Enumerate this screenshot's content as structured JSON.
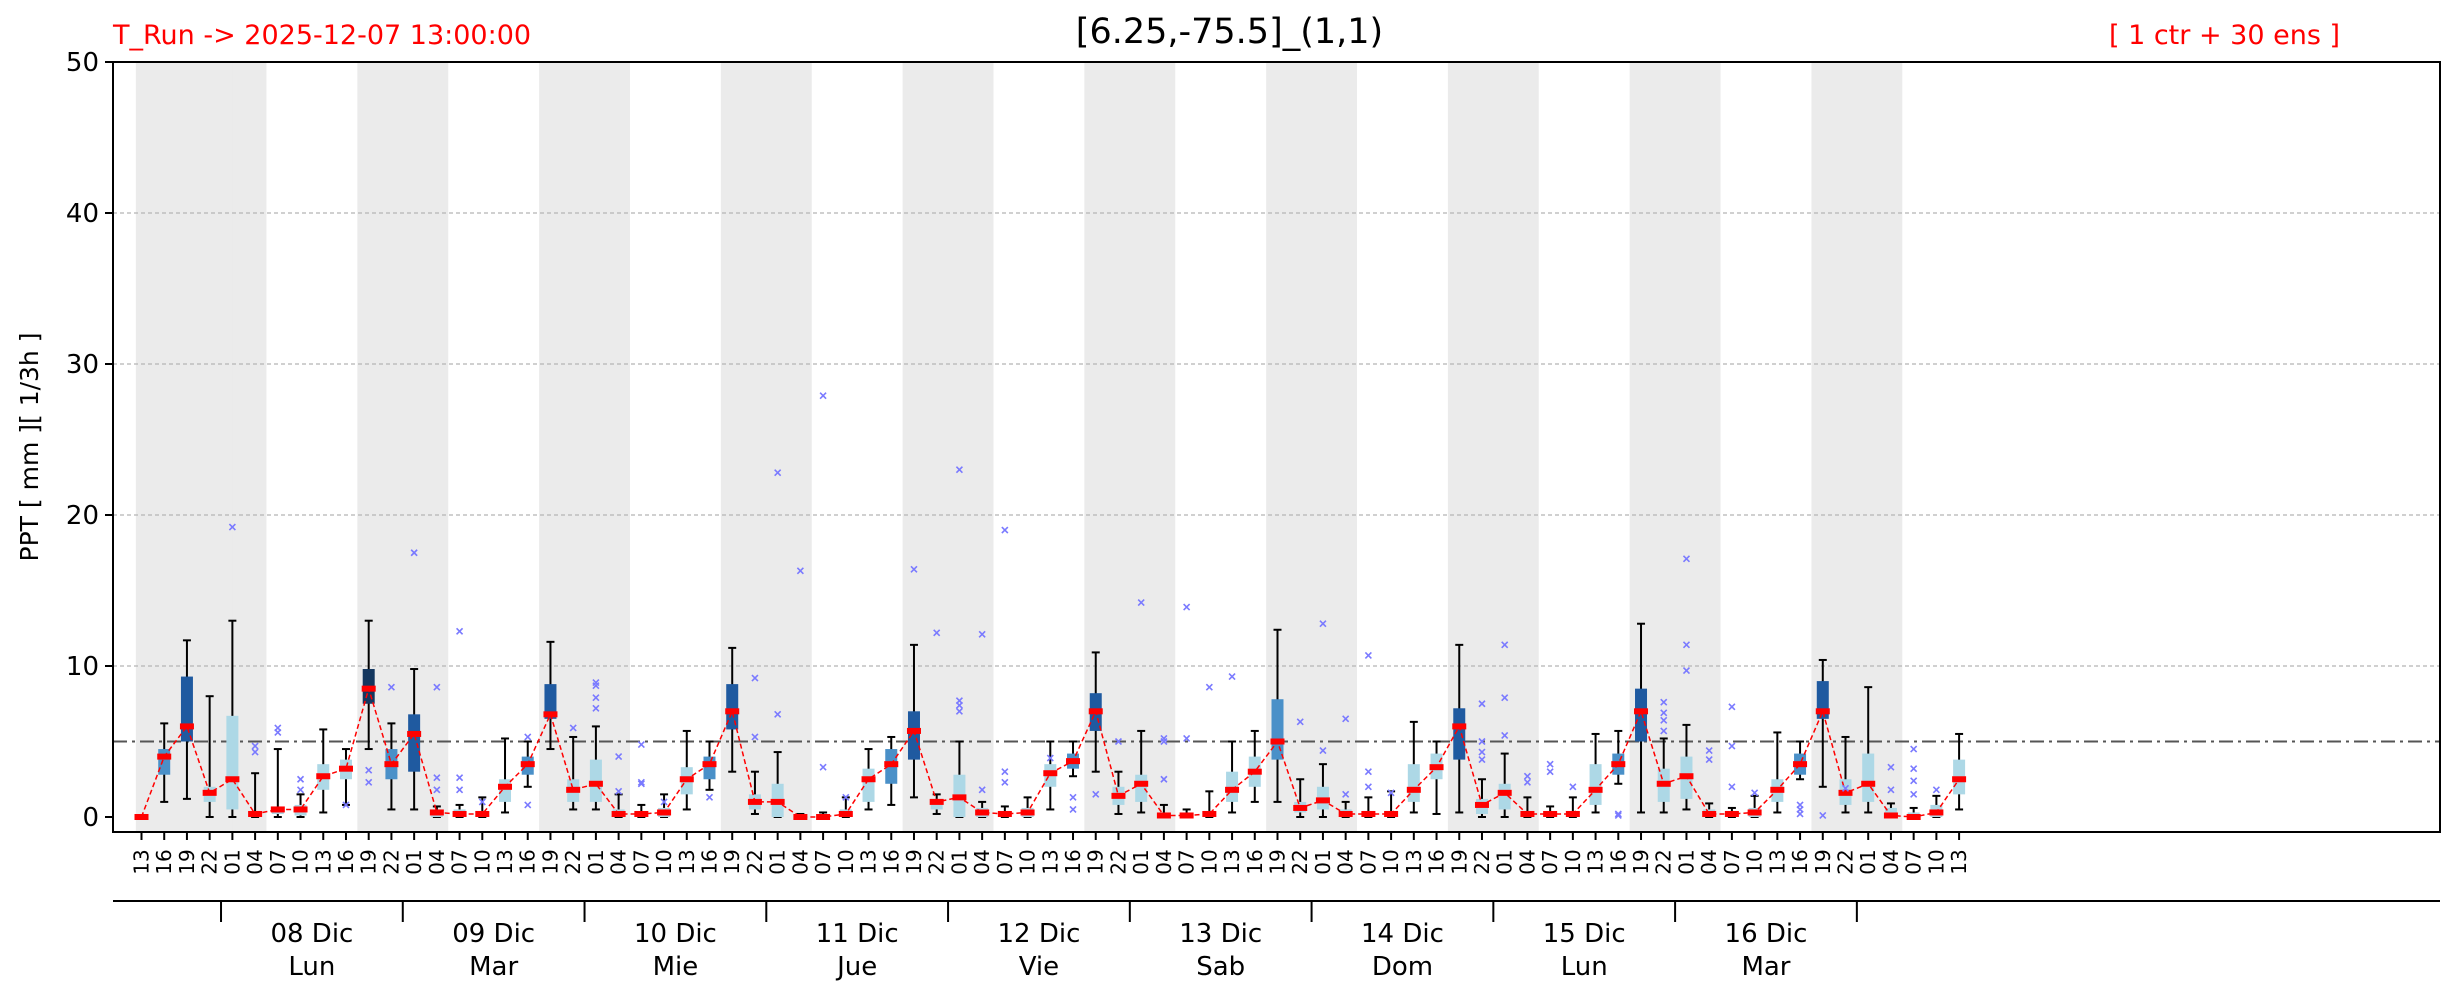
{
  "header": {
    "run_label": "T_Run -> 2025-12-07  13:00:00",
    "title": "[6.25,-75.5]_(1,1)",
    "ensemble_label": "[ 1 ctr + 30 ens ]"
  },
  "colors": {
    "accent": "#ff0000",
    "shade": "#ebebeb",
    "box_light": "#add8e6",
    "box_mid": "#4a90c8",
    "box_dark": "#1f5aa0",
    "box_darkest": "#14375f",
    "outlier": "#7a7aff",
    "threshold_line": "#555555"
  },
  "chart_data": {
    "type": "box",
    "title": "[6.25,-75.5]_(1,1)",
    "ylabel": "PPT  [ mm ][ 1/3h ]",
    "ylim": [
      0,
      50
    ],
    "yticks": [
      0,
      10,
      20,
      30,
      40,
      50
    ],
    "grid": true,
    "threshold": 5,
    "hours": [
      "13",
      "16",
      "19",
      "22",
      "01",
      "04",
      "07",
      "10",
      "13",
      "16",
      "19",
      "22",
      "01",
      "04",
      "07",
      "10",
      "13",
      "16",
      "19",
      "22",
      "01",
      "04",
      "07",
      "10",
      "13",
      "16",
      "19",
      "22",
      "01",
      "04",
      "07",
      "10",
      "13",
      "16",
      "19",
      "22",
      "01",
      "04",
      "07",
      "10",
      "13",
      "16",
      "19",
      "22",
      "01",
      "04",
      "07",
      "10",
      "13",
      "16",
      "19",
      "22",
      "01",
      "04",
      "07",
      "10",
      "13",
      "16",
      "19",
      "22",
      "01",
      "04",
      "07",
      "10",
      "13",
      "16",
      "19",
      "22",
      "01",
      "04",
      "07",
      "10",
      "13",
      "16",
      "19",
      "22",
      "01",
      "04",
      "07",
      "10",
      "13"
    ],
    "days": [
      {
        "date": "08 Dic",
        "weekday": "Lun"
      },
      {
        "date": "09 Dic",
        "weekday": "Mar"
      },
      {
        "date": "10 Dic",
        "weekday": "Mie"
      },
      {
        "date": "11 Dic",
        "weekday": "Jue"
      },
      {
        "date": "12 Dic",
        "weekday": "Vie"
      },
      {
        "date": "13 Dic",
        "weekday": "Sab"
      },
      {
        "date": "14 Dic",
        "weekday": "Dom"
      },
      {
        "date": "15 Dic",
        "weekday": "Lun"
      },
      {
        "date": "16 Dic",
        "weekday": "Mar"
      }
    ],
    "median": [
      0.0,
      4.0,
      6.0,
      1.6,
      2.5,
      0.2,
      0.5,
      0.5,
      2.7,
      3.2,
      8.5,
      3.5,
      5.5,
      0.3,
      0.2,
      0.2,
      2.0,
      3.5,
      6.8,
      1.8,
      2.2,
      0.2,
      0.2,
      0.3,
      2.5,
      3.5,
      7.0,
      1.0,
      1.0,
      0.0,
      0.0,
      0.2,
      2.5,
      3.5,
      5.7,
      1.0,
      1.3,
      0.3,
      0.2,
      0.3,
      2.9,
      3.7,
      7.0,
      1.4,
      2.2,
      0.1,
      0.1,
      0.2,
      1.8,
      3.0,
      5.0,
      0.6,
      1.1,
      0.2,
      0.2,
      0.2,
      1.8,
      3.3,
      6.0,
      0.8,
      1.6,
      0.2,
      0.2,
      0.2,
      1.8,
      3.5,
      7.0,
      2.2,
      2.7,
      0.2,
      0.2,
      0.3,
      1.8,
      3.5,
      7.0,
      1.6,
      2.2,
      0.1,
      0.0,
      0.3,
      2.5
    ],
    "q1": [
      0.0,
      2.8,
      5.0,
      1.0,
      0.5,
      0.0,
      0.2,
      0.1,
      1.8,
      2.5,
      7.5,
      2.5,
      3.0,
      0.0,
      0.0,
      0.0,
      1.0,
      2.8,
      6.5,
      1.0,
      1.0,
      0.0,
      0.0,
      0.0,
      1.5,
      2.5,
      5.8,
      0.5,
      0.0,
      0.0,
      0.0,
      0.0,
      1.0,
      2.2,
      3.8,
      0.5,
      0.0,
      0.0,
      0.0,
      0.0,
      2.0,
      3.2,
      5.7,
      0.8,
      1.0,
      0.0,
      0.0,
      0.0,
      1.0,
      2.0,
      3.8,
      0.3,
      0.5,
      0.0,
      0.0,
      0.0,
      1.0,
      2.5,
      3.8,
      0.2,
      0.5,
      0.0,
      0.0,
      0.0,
      0.8,
      2.8,
      5.0,
      1.0,
      1.2,
      0.0,
      0.0,
      0.0,
      1.0,
      2.8,
      6.5,
      0.8,
      1.0,
      0.0,
      0.0,
      0.0,
      1.5
    ],
    "q3": [
      0.0,
      4.5,
      9.3,
      2.0,
      6.7,
      0.3,
      0.6,
      0.8,
      3.5,
      3.8,
      9.8,
      4.5,
      6.8,
      0.5,
      0.5,
      0.4,
      2.5,
      4.0,
      8.8,
      2.5,
      3.8,
      0.5,
      0.3,
      0.6,
      3.3,
      4.0,
      8.8,
      1.5,
      2.2,
      0.1,
      0.1,
      0.5,
      3.2,
      4.5,
      7.0,
      1.2,
      2.8,
      0.6,
      0.4,
      0.6,
      3.5,
      4.2,
      8.2,
      2.0,
      2.8,
      0.3,
      0.3,
      0.4,
      3.0,
      4.0,
      7.8,
      1.0,
      2.0,
      0.5,
      0.4,
      0.4,
      3.5,
      4.2,
      7.2,
      1.2,
      2.2,
      0.4,
      0.4,
      0.4,
      3.5,
      4.2,
      8.5,
      3.2,
      4.0,
      0.5,
      0.4,
      0.6,
      2.5,
      4.2,
      9.0,
      2.5,
      4.2,
      0.6,
      0.3,
      0.8,
      3.8
    ],
    "whisker_low": [
      0.0,
      1.0,
      1.2,
      0.0,
      0.0,
      0.0,
      0.0,
      0.0,
      0.3,
      0.8,
      4.5,
      0.5,
      0.5,
      0.0,
      0.0,
      0.0,
      0.3,
      2.0,
      4.5,
      0.5,
      0.5,
      0.0,
      0.0,
      0.0,
      0.5,
      1.8,
      3.0,
      0.2,
      0.0,
      0.0,
      0.0,
      0.0,
      0.5,
      0.8,
      1.3,
      0.2,
      0.0,
      0.0,
      0.0,
      0.0,
      0.5,
      2.7,
      3.0,
      0.2,
      0.3,
      0.0,
      0.0,
      0.0,
      0.3,
      1.0,
      1.0,
      0.0,
      0.0,
      0.0,
      0.0,
      0.0,
      0.3,
      0.2,
      0.3,
      0.0,
      0.0,
      0.0,
      0.0,
      0.0,
      0.3,
      2.2,
      0.3,
      0.3,
      0.5,
      0.0,
      0.0,
      0.0,
      0.3,
      2.5,
      2.0,
      0.3,
      0.3,
      0.0,
      0.0,
      0.0,
      0.5
    ],
    "whisker_high": [
      0.0,
      6.2,
      11.7,
      8.0,
      13.0,
      2.9,
      4.5,
      1.5,
      5.8,
      4.5,
      13.0,
      6.2,
      9.8,
      0.7,
      0.8,
      1.3,
      5.2,
      5.0,
      11.6,
      5.3,
      6.0,
      1.5,
      0.8,
      1.5,
      5.7,
      5.0,
      11.2,
      3.0,
      4.3,
      0.2,
      0.3,
      1.3,
      4.5,
      5.3,
      11.4,
      1.5,
      5.0,
      1.0,
      0.7,
      1.3,
      5.0,
      5.0,
      10.9,
      3.0,
      5.7,
      0.8,
      0.5,
      1.7,
      5.0,
      5.7,
      12.4,
      2.5,
      3.5,
      1.0,
      1.3,
      1.7,
      6.3,
      5.0,
      11.4,
      2.5,
      4.2,
      1.3,
      0.7,
      1.3,
      5.5,
      5.7,
      12.8,
      5.2,
      6.1,
      0.9,
      0.6,
      1.4,
      5.6,
      5.0,
      10.4,
      5.3,
      8.6,
      0.9,
      0.6,
      1.4,
      5.5
    ],
    "outliers": [
      [
        4,
        19.2
      ],
      [
        5,
        4.3
      ],
      [
        5,
        4.7
      ],
      [
        6,
        5.6
      ],
      [
        6,
        5.9
      ],
      [
        7,
        2.5
      ],
      [
        7,
        1.8
      ],
      [
        9,
        0.8
      ],
      [
        10,
        2.3
      ],
      [
        10,
        3.1
      ],
      [
        11,
        8.6
      ],
      [
        12,
        17.5
      ],
      [
        13,
        8.6
      ],
      [
        13,
        2.6
      ],
      [
        13,
        1.8
      ],
      [
        14,
        12.3
      ],
      [
        14,
        2.6
      ],
      [
        14,
        1.8
      ],
      [
        15,
        1.0
      ],
      [
        17,
        5.3
      ],
      [
        17,
        0.8
      ],
      [
        19,
        5.9
      ],
      [
        20,
        8.7
      ],
      [
        20,
        8.9
      ],
      [
        20,
        7.9
      ],
      [
        20,
        7.2
      ],
      [
        21,
        4.0
      ],
      [
        21,
        1.7
      ],
      [
        22,
        2.3
      ],
      [
        22,
        2.2
      ],
      [
        22,
        4.8
      ],
      [
        23,
        1.0
      ],
      [
        25,
        1.3
      ],
      [
        27,
        9.2
      ],
      [
        27,
        5.3
      ],
      [
        28,
        22.8
      ],
      [
        28,
        6.8
      ],
      [
        29,
        16.3
      ],
      [
        30,
        27.9
      ],
      [
        30,
        3.3
      ],
      [
        31,
        1.3
      ],
      [
        34,
        16.4
      ],
      [
        35,
        12.2
      ],
      [
        36,
        23.0
      ],
      [
        36,
        7.0
      ],
      [
        36,
        7.4
      ],
      [
        36,
        7.7
      ],
      [
        37,
        12.1
      ],
      [
        37,
        1.8
      ],
      [
        38,
        19.0
      ],
      [
        38,
        3.0
      ],
      [
        38,
        2.3
      ],
      [
        40,
        3.9
      ],
      [
        41,
        1.3
      ],
      [
        41,
        0.5
      ],
      [
        42,
        1.5
      ],
      [
        43,
        5.0
      ],
      [
        44,
        14.2
      ],
      [
        45,
        5.2
      ],
      [
        45,
        5.0
      ],
      [
        45,
        2.5
      ],
      [
        46,
        13.9
      ],
      [
        46,
        5.2
      ],
      [
        47,
        8.6
      ],
      [
        48,
        9.3
      ],
      [
        51,
        6.3
      ],
      [
        52,
        12.8
      ],
      [
        52,
        4.4
      ],
      [
        53,
        6.5
      ],
      [
        53,
        1.5
      ],
      [
        54,
        10.7
      ],
      [
        54,
        3.0
      ],
      [
        54,
        2.0
      ],
      [
        55,
        1.6
      ],
      [
        59,
        7.5
      ],
      [
        59,
        5.0
      ],
      [
        59,
        4.3
      ],
      [
        59,
        3.8
      ],
      [
        60,
        11.4
      ],
      [
        60,
        7.9
      ],
      [
        60,
        5.4
      ],
      [
        61,
        2.7
      ],
      [
        61,
        2.3
      ],
      [
        62,
        3.5
      ],
      [
        62,
        3.0
      ],
      [
        63,
        2.0
      ],
      [
        65,
        0.2
      ],
      [
        65,
        0.1
      ],
      [
        67,
        7.6
      ],
      [
        67,
        6.9
      ],
      [
        67,
        6.4
      ],
      [
        67,
        5.7
      ],
      [
        68,
        17.1
      ],
      [
        68,
        11.4
      ],
      [
        68,
        9.7
      ],
      [
        69,
        4.4
      ],
      [
        69,
        3.8
      ],
      [
        70,
        7.3
      ],
      [
        70,
        4.7
      ],
      [
        70,
        2.0
      ],
      [
        71,
        1.6
      ],
      [
        73,
        0.8
      ],
      [
        73,
        0.5
      ],
      [
        73,
        0.2
      ],
      [
        74,
        0.1
      ],
      [
        75,
        1.9
      ],
      [
        77,
        3.3
      ],
      [
        77,
        1.8
      ],
      [
        78,
        4.5
      ],
      [
        78,
        3.2
      ],
      [
        78,
        2.4
      ],
      [
        78,
        1.5
      ],
      [
        79,
        1.8
      ]
    ]
  }
}
